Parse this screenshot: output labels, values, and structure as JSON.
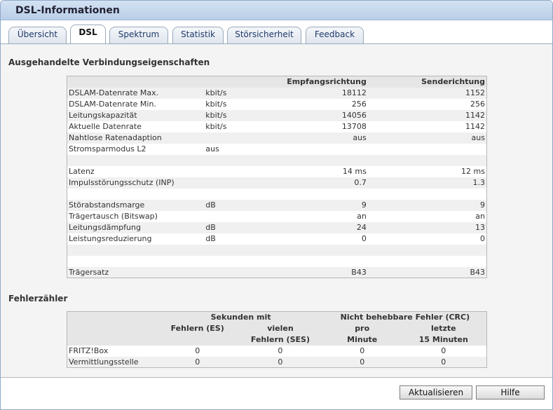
{
  "window": {
    "title": "DSL-Informationen"
  },
  "tabs": [
    {
      "label": "Übersicht"
    },
    {
      "label": "DSL"
    },
    {
      "label": "Spektrum"
    },
    {
      "label": "Statistik"
    },
    {
      "label": "Störsicherheit"
    },
    {
      "label": "Feedback"
    }
  ],
  "connection": {
    "heading": "Ausgehandelte Verbindungseigenschaften",
    "col_rx": "Empfangsrichtung",
    "col_tx": "Senderichtung",
    "rows": [
      {
        "label": "DSLAM-Datenrate Max.",
        "unit": "kbit/s",
        "rx": "18112",
        "tx": "1152"
      },
      {
        "label": "DSLAM-Datenrate Min.",
        "unit": "kbit/s",
        "rx": "256",
        "tx": "256"
      },
      {
        "label": "Leitungskapazität",
        "unit": "kbit/s",
        "rx": "14056",
        "tx": "1142"
      },
      {
        "label": "Aktuelle Datenrate",
        "unit": "kbit/s",
        "rx": "13708",
        "tx": "1142"
      },
      {
        "label": "Nahtlose Ratenadaption",
        "unit": "",
        "rx": "aus",
        "tx": "aus"
      },
      {
        "label": "Stromsparmodus L2",
        "unit": "aus",
        "rx": "",
        "tx": ""
      },
      {
        "label": "",
        "unit": "",
        "rx": "",
        "tx": ""
      },
      {
        "label": "Latenz",
        "unit": "",
        "rx": "14 ms",
        "tx": "12 ms"
      },
      {
        "label": "Impulsstörungsschutz (INP)",
        "unit": "",
        "rx": "0.7",
        "tx": "1.3"
      },
      {
        "label": "",
        "unit": "",
        "rx": "",
        "tx": ""
      },
      {
        "label": "Störabstandsmarge",
        "unit": "dB",
        "rx": "9",
        "tx": "9"
      },
      {
        "label": "Trägertausch (Bitswap)",
        "unit": "",
        "rx": "an",
        "tx": "an"
      },
      {
        "label": "Leitungsdämpfung",
        "unit": "dB",
        "rx": "24",
        "tx": "13"
      },
      {
        "label": "Leistungsreduzierung",
        "unit": "dB",
        "rx": "0",
        "tx": "0"
      },
      {
        "label": "",
        "unit": "",
        "rx": "",
        "tx": ""
      },
      {
        "label": "",
        "unit": "",
        "rx": "",
        "tx": ""
      },
      {
        "label": "Trägersatz",
        "unit": "",
        "rx": "B43",
        "tx": "B43"
      }
    ]
  },
  "errors": {
    "heading": "Fehlerzähler",
    "group_seconds": "Sekunden mit",
    "group_crc": "Nicht behebbare Fehler (CRC)",
    "col_es": "Fehlern (ES)",
    "col_ses_1": "vielen",
    "col_ses_2": "Fehlern (SES)",
    "col_pm_1": "pro",
    "col_pm_2": "Minute",
    "col_l15_1": "letzte",
    "col_l15_2": "15 Minuten",
    "rows": [
      {
        "label": "FRITZ!Box",
        "es": "0",
        "ses": "0",
        "pm": "0",
        "l15": "0"
      },
      {
        "label": "Vermittlungsstelle",
        "es": "0",
        "ses": "0",
        "pm": "0",
        "l15": "0"
      }
    ]
  },
  "buttons": {
    "refresh": "Aktualisieren",
    "help": "Hilfe"
  }
}
